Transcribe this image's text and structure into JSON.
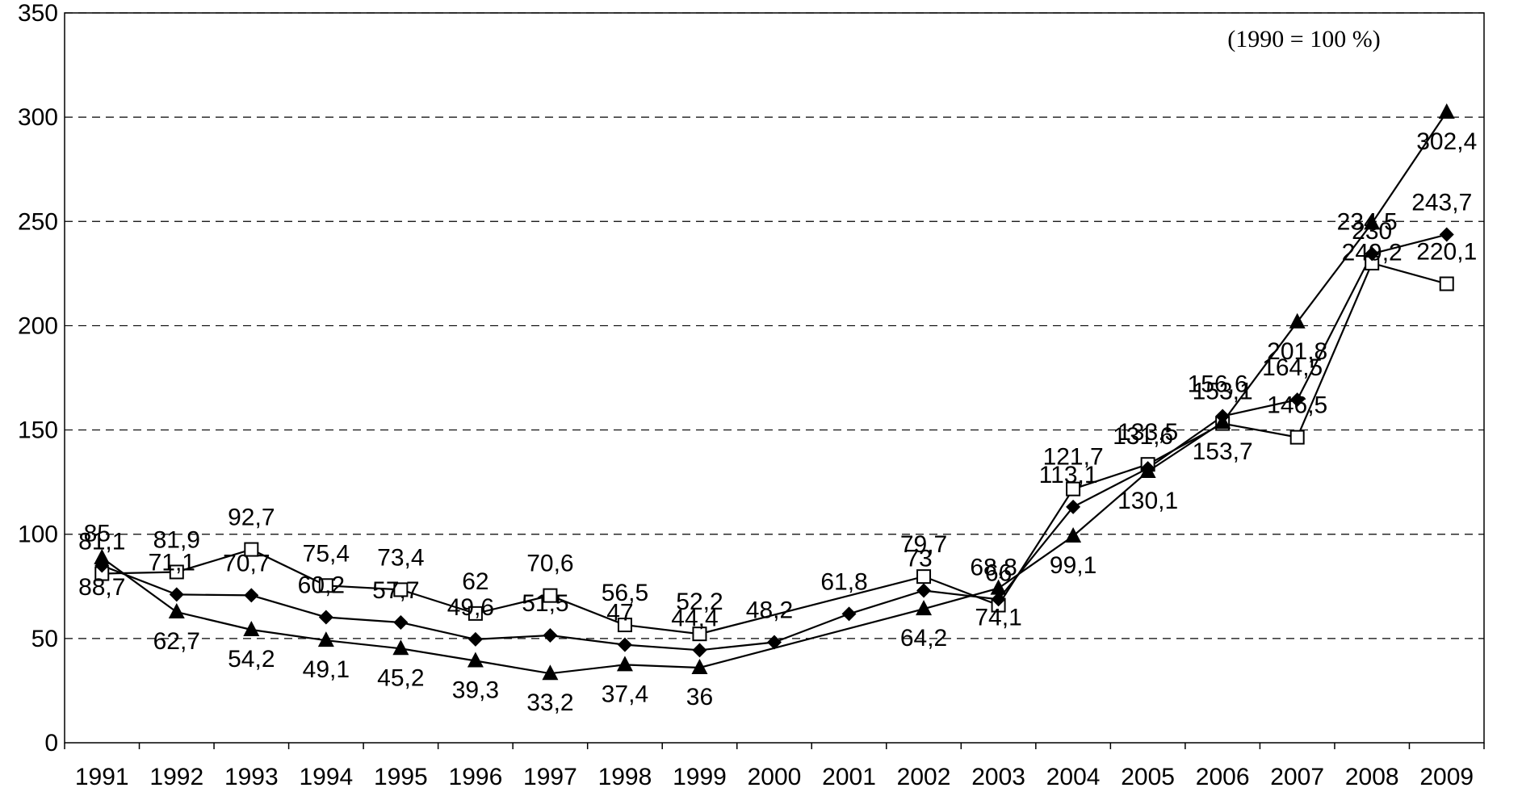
{
  "chart_data": {
    "type": "line",
    "annotation": "(1990 = 100 %)",
    "ylim": [
      0,
      350
    ],
    "yticks": [
      "0",
      "50",
      "100",
      "150",
      "200",
      "250",
      "300",
      "350"
    ],
    "grid": "horizontal dashed",
    "x": [
      "1991",
      "1992",
      "1993",
      "1994",
      "1995",
      "1996",
      "1997",
      "1998",
      "1999",
      "2000",
      "2001",
      "2002",
      "2003",
      "2004",
      "2005",
      "2006",
      "2007",
      "2008",
      "2009"
    ],
    "series": [
      {
        "marker": "hollow-square",
        "values": [
          81.1,
          81.9,
          92.7,
          75.4,
          73.4,
          62,
          70.6,
          56.5,
          52.2,
          null,
          null,
          79.7,
          66,
          121.7,
          133.5,
          153.1,
          146.5,
          230,
          220.1
        ],
        "labels": [
          "81,1",
          "81,9",
          "92,7",
          "75,4",
          "73,4",
          "62",
          "70,6",
          "56,5",
          "52,2",
          "",
          "",
          "79,7",
          "66",
          "121,7",
          "133,5",
          "153,1",
          "146,5",
          "230",
          "220,1"
        ]
      },
      {
        "marker": "filled-diamond",
        "values": [
          85,
          71.1,
          70.7,
          60.2,
          57.7,
          49.6,
          51.5,
          47,
          44.4,
          48.2,
          61.8,
          73,
          68.8,
          113.1,
          131.6,
          156.6,
          164.5,
          234.5,
          243.7
        ],
        "labels": [
          "85",
          "71,1",
          "70,7",
          "60,2",
          "57,7",
          "49,6",
          "51,5",
          "47",
          "44,4",
          "48,2",
          "61,8",
          "73",
          "68,8",
          "113,1",
          "131,6",
          "156,6",
          "164,5",
          "234,5",
          "243,7"
        ]
      },
      {
        "marker": "filled-triangle",
        "values": [
          88.7,
          62.7,
          54.2,
          49.1,
          45.2,
          39.3,
          33.2,
          37.4,
          36,
          null,
          null,
          64.2,
          74.1,
          99.1,
          130.1,
          153.7,
          201.8,
          249.2,
          302.4
        ],
        "labels": [
          "88,7",
          "62,7",
          "54,2",
          "49,1",
          "45,2",
          "39,3",
          "33,2",
          "37,4",
          "36",
          "",
          "",
          "64,2",
          "74,1",
          "99,1",
          "130,1",
          "153,7",
          "201,8",
          "249,2",
          "302,4"
        ]
      }
    ]
  }
}
